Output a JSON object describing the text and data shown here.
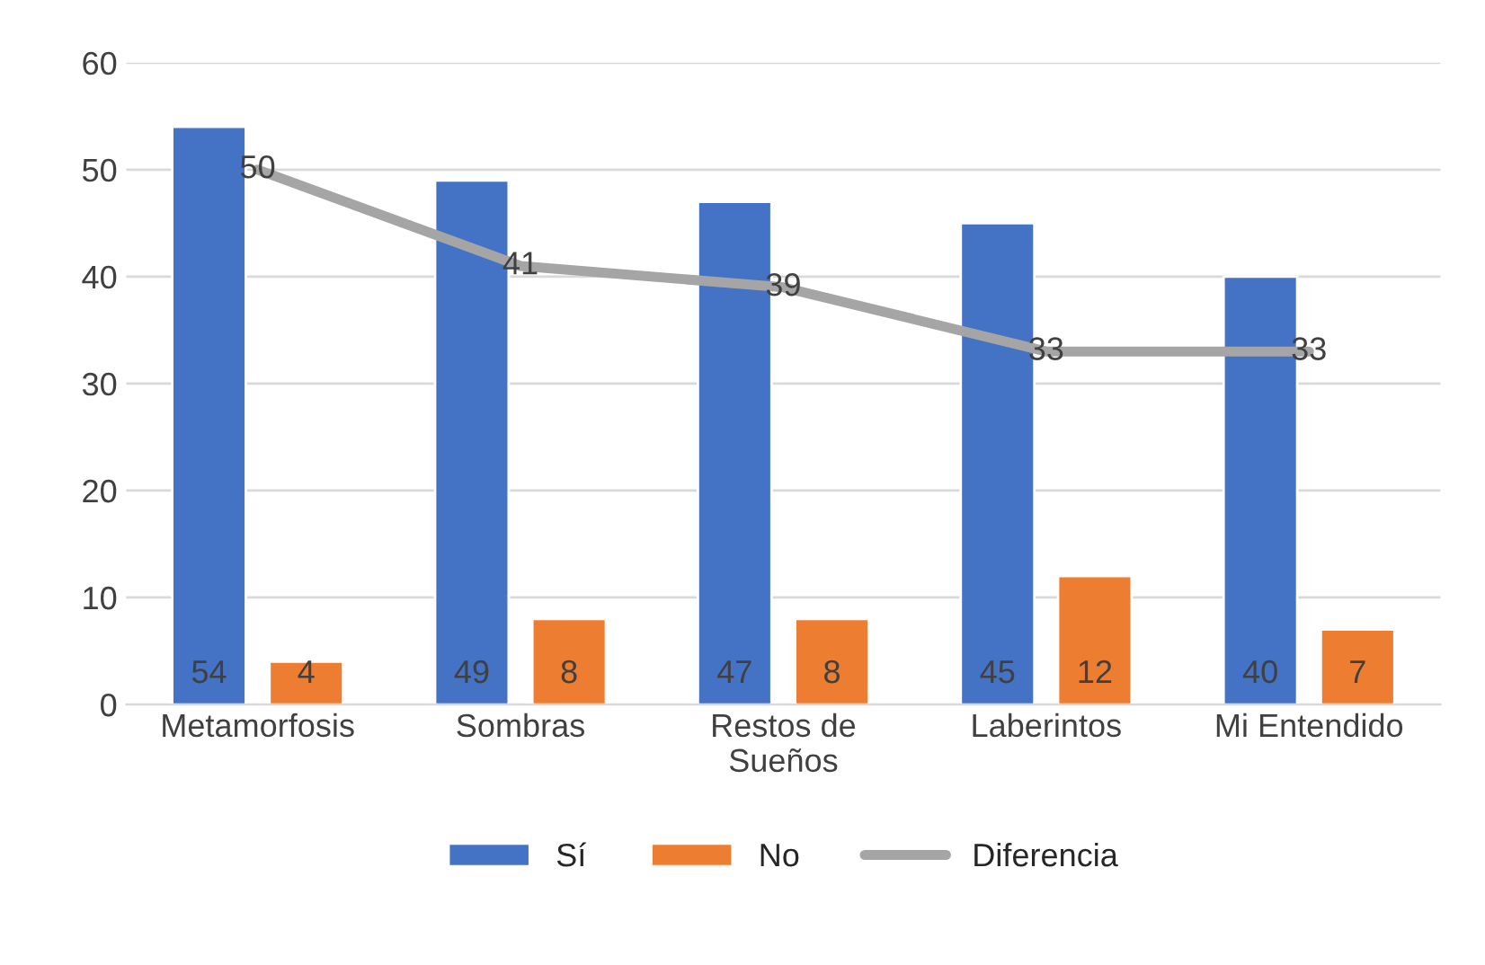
{
  "chart_data": {
    "type": "bar",
    "categories": [
      "Metamorfosis",
      "Sombras",
      "Restos de Sueños",
      "Laberintos",
      "Mi Entendido"
    ],
    "series": [
      {
        "name": "Sí",
        "color": "#4472c4",
        "values": [
          54,
          49,
          47,
          45,
          40
        ]
      },
      {
        "name": "No",
        "color": "#ed7d31",
        "values": [
          4,
          8,
          8,
          12,
          7
        ]
      },
      {
        "name": "Diferencia",
        "type": "line",
        "color": "#a5a5a5",
        "values": [
          50,
          41,
          39,
          33,
          33
        ]
      }
    ],
    "ylim": [
      0,
      60
    ],
    "yticks": [
      0,
      10,
      20,
      30,
      40,
      50,
      60
    ],
    "grid": "y",
    "legend": "bottom",
    "data_labels": true,
    "marker": "none",
    "line_style": "solid"
  }
}
